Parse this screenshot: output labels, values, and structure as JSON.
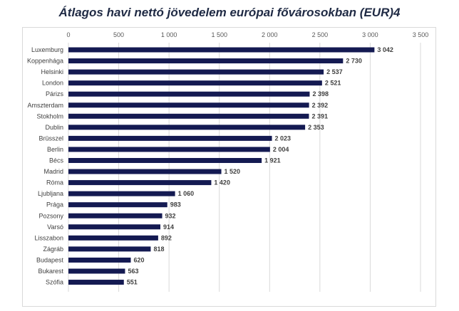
{
  "chart_data": {
    "type": "bar",
    "orientation": "horizontal",
    "title": "Átlagos havi nettó jövedelem európai fővárosokban (EUR)4",
    "categories": [
      "Luxemburg",
      "Koppenhága",
      "Helsinki",
      "London",
      "Párizs",
      "Amszterdam",
      "Stokholm",
      "Dublin",
      "Brüsszel",
      "Berlin",
      "Bécs",
      "Madrid",
      "Róma",
      "Ljubljana",
      "Prága",
      "Pozsony",
      "Varsó",
      "Lisszabon",
      "Zágráb",
      "Budapest",
      "Bukarest",
      "Szófia"
    ],
    "values": [
      3042,
      2730,
      2537,
      2521,
      2398,
      2392,
      2391,
      2353,
      2023,
      2004,
      1921,
      1520,
      1420,
      1060,
      983,
      932,
      914,
      892,
      818,
      620,
      563,
      551
    ],
    "value_labels": [
      "3 042",
      "2 730",
      "2 537",
      "2 521",
      "2 398",
      "2 392",
      "2 391",
      "2 353",
      "2 023",
      "2 004",
      "1 921",
      "1 520",
      "1 420",
      "1 060",
      "983",
      "932",
      "914",
      "892",
      "818",
      "620",
      "563",
      "551"
    ],
    "xlim": [
      0,
      3500
    ],
    "ticks": [
      0,
      500,
      1000,
      1500,
      2000,
      2500,
      3000,
      3500
    ],
    "tick_labels": [
      "0",
      "500",
      "1 000",
      "1 500",
      "2 000",
      "2 500",
      "3 000",
      "3 500"
    ],
    "axis_position": "top",
    "grid": true,
    "bar_color": "#141a52",
    "grid_color": "#d9d9d9",
    "xlabel": "",
    "ylabel": ""
  }
}
